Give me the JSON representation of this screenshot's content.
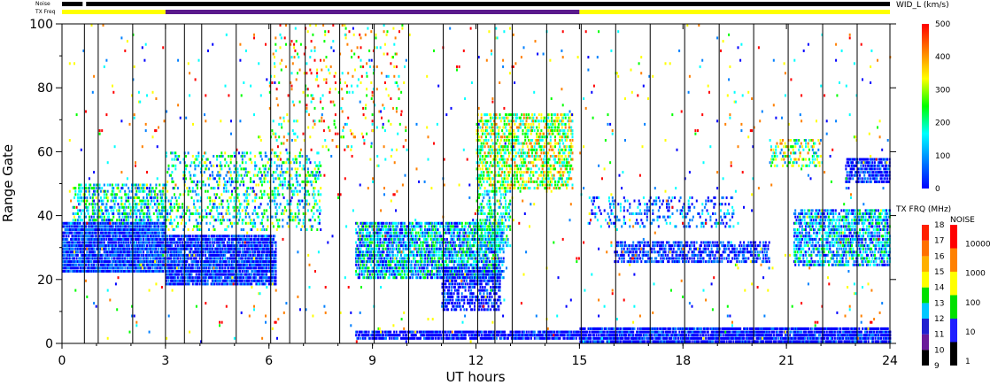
{
  "chart_data": {
    "type": "heatmap",
    "xlabel": "UT hours",
    "ylabel": "Range Gate",
    "xlim": [
      0,
      24
    ],
    "ylim": [
      0,
      100
    ],
    "x_ticks": [
      "0",
      "3",
      "6",
      "9",
      "12",
      "15",
      "18",
      "21",
      "24"
    ],
    "y_ticks": [
      "0",
      "20",
      "40",
      "60",
      "80",
      "100"
    ],
    "scan_boundaries_ut": [
      0.65,
      1.05,
      2.05,
      3.0,
      3.55,
      4.05,
      5.05,
      6.05,
      6.6,
      7.05,
      8.05,
      9.05,
      10.05,
      11.05,
      12.05,
      12.55,
      13.05,
      14.05,
      15.05,
      16.05,
      17.05,
      18.05,
      19.05,
      20.05,
      21.05,
      22.05,
      23.05,
      24.0
    ],
    "noise_bar": {
      "label": "Noise",
      "segments": [
        {
          "start": 0,
          "end": 0.6,
          "color": "#000000"
        },
        {
          "start": 0.6,
          "end": 0.7,
          "color": "#ffffff"
        },
        {
          "start": 0.7,
          "end": 24,
          "color": "#000000"
        }
      ]
    },
    "tx_freq_bar": {
      "label": "TX Freq",
      "segments": [
        {
          "start": 0,
          "end": 3,
          "color": "#ffff00"
        },
        {
          "start": 3,
          "end": 15,
          "color": "#5a1a8c"
        },
        {
          "start": 15,
          "end": 24,
          "color": "#ffff00"
        }
      ]
    },
    "width_colorbar": {
      "title": "WID_L (km/s)",
      "ticks": [
        "0",
        "100",
        "200",
        "300",
        "400",
        "500"
      ],
      "range": [
        0,
        500
      ],
      "stops": [
        "#0000ff",
        "#0080ff",
        "#00ffff",
        "#00ff00",
        "#ffff00",
        "#ff8000",
        "#ff0000"
      ]
    },
    "freq_colorbar": {
      "title": "TX FRQ (MHz)",
      "ticks": [
        "9",
        "10",
        "11",
        "12",
        "13",
        "14",
        "15",
        "16",
        "17",
        "18"
      ],
      "colors": [
        "#000000",
        "#6a1b9a",
        "#2020d0",
        "#00c8ff",
        "#00e000",
        "#ffff00",
        "#ffb000",
        "#ff7000",
        "#ff2000"
      ]
    },
    "noise_colorbar": {
      "title": "NOISE",
      "ticks": [
        "1",
        "10",
        "100",
        "1000",
        "10000"
      ],
      "colors": [
        "#000000",
        "#2020ff",
        "#00e000",
        "#ffff00",
        "#ff8000",
        "#ff0000"
      ]
    },
    "scatter_regions": [
      {
        "x0": 0,
        "x1": 3,
        "y0": 22,
        "y1": 38,
        "density": 0.9,
        "w0": 0,
        "w1": 140
      },
      {
        "x0": 0.3,
        "x1": 3,
        "y0": 38,
        "y1": 50,
        "density": 0.45,
        "w0": 50,
        "w1": 300
      },
      {
        "x0": 3,
        "x1": 6.2,
        "y0": 18,
        "y1": 34,
        "density": 0.85,
        "w0": 0,
        "w1": 120
      },
      {
        "x0": 3,
        "x1": 7.5,
        "y0": 35,
        "y1": 60,
        "density": 0.25,
        "w0": 60,
        "w1": 320
      },
      {
        "x0": 6,
        "x1": 10,
        "y0": 60,
        "y1": 100,
        "density": 0.06,
        "w0": 150,
        "w1": 500
      },
      {
        "x0": 8.5,
        "x1": 12.8,
        "y0": 20,
        "y1": 38,
        "density": 0.7,
        "w0": 20,
        "w1": 260
      },
      {
        "x0": 11,
        "x1": 12.7,
        "y0": 10,
        "y1": 24,
        "density": 0.55,
        "w0": 0,
        "w1": 100
      },
      {
        "x0": 12,
        "x1": 14.8,
        "y0": 48,
        "y1": 72,
        "density": 0.5,
        "w0": 150,
        "w1": 400
      },
      {
        "x0": 12,
        "x1": 13,
        "y0": 30,
        "y1": 48,
        "density": 0.4,
        "w0": 100,
        "w1": 300
      },
      {
        "x0": 8.5,
        "x1": 15,
        "y0": 1,
        "y1": 4,
        "density": 0.8,
        "w0": 0,
        "w1": 90
      },
      {
        "x0": 15,
        "x1": 24,
        "y0": 0,
        "y1": 5,
        "density": 0.85,
        "w0": 0,
        "w1": 90
      },
      {
        "x0": 16,
        "x1": 20.5,
        "y0": 25,
        "y1": 32,
        "density": 0.55,
        "w0": 0,
        "w1": 120
      },
      {
        "x0": 15.2,
        "x1": 19.5,
        "y0": 36,
        "y1": 46,
        "density": 0.2,
        "w0": 0,
        "w1": 180
      },
      {
        "x0": 21.2,
        "x1": 24,
        "y0": 24,
        "y1": 42,
        "density": 0.6,
        "w0": 20,
        "w1": 250
      },
      {
        "x0": 22.7,
        "x1": 24,
        "y0": 50,
        "y1": 58,
        "density": 0.7,
        "w0": 0,
        "w1": 100
      },
      {
        "x0": 20.5,
        "x1": 22,
        "y0": 55,
        "y1": 64,
        "density": 0.3,
        "w0": 100,
        "w1": 400
      },
      {
        "x0": 0,
        "x1": 24,
        "y0": 0,
        "y1": 100,
        "density": 0.012,
        "w0": 0,
        "w1": 500
      }
    ]
  }
}
